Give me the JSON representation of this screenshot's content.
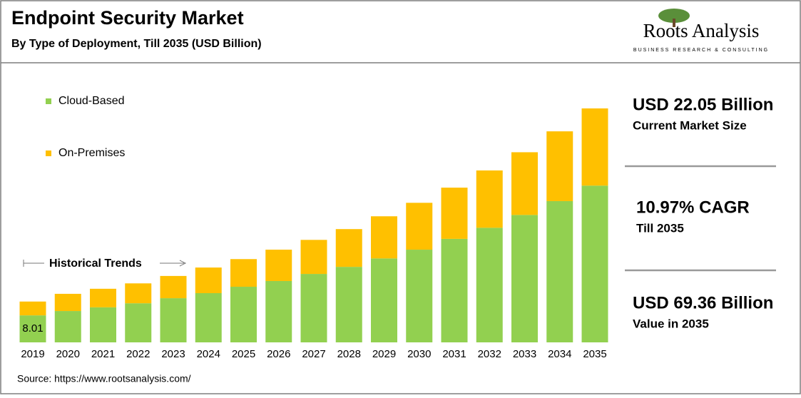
{
  "header": {
    "title": "Endpoint Security Market",
    "subtitle": "By Type of Deployment, Till 2035 (USD Billion)"
  },
  "logo": {
    "name": "Roots Analysis",
    "tagline": "BUSINESS RESEARCH & CONSULTING"
  },
  "chart_data": {
    "type": "bar",
    "stacked": true,
    "categories": [
      "2019",
      "2020",
      "2021",
      "2022",
      "2023",
      "2024",
      "2025",
      "2026",
      "2027",
      "2028",
      "2029",
      "2030",
      "2031",
      "2032",
      "2033",
      "2034",
      "2035"
    ],
    "series": [
      {
        "name": "Cloud-Based",
        "color": "#92d050",
        "values": [
          8.01,
          9.3,
          10.4,
          11.6,
          13.1,
          14.6,
          16.5,
          18.2,
          20.3,
          22.4,
          24.9,
          27.5,
          30.7,
          34.0,
          37.8,
          41.9,
          46.5
        ]
      },
      {
        "name": "On-Premises",
        "color": "#ffc000",
        "values": [
          4.1,
          5.1,
          5.5,
          5.9,
          6.6,
          7.6,
          8.2,
          9.3,
          10.1,
          11.2,
          12.5,
          13.9,
          15.2,
          17.0,
          18.6,
          20.7,
          22.9
        ]
      }
    ],
    "annotation": "Historical Trends"
  },
  "highlights": [
    {
      "value": "USD 22.05 Billion",
      "label": "Current Market Size"
    },
    {
      "value": "10.97% CAGR",
      "label": "Till 2035"
    },
    {
      "value": "USD 69.36 Billion",
      "label": "Value in 2035"
    }
  ],
  "source": "Source: https://www.rootsanalysis.com/"
}
